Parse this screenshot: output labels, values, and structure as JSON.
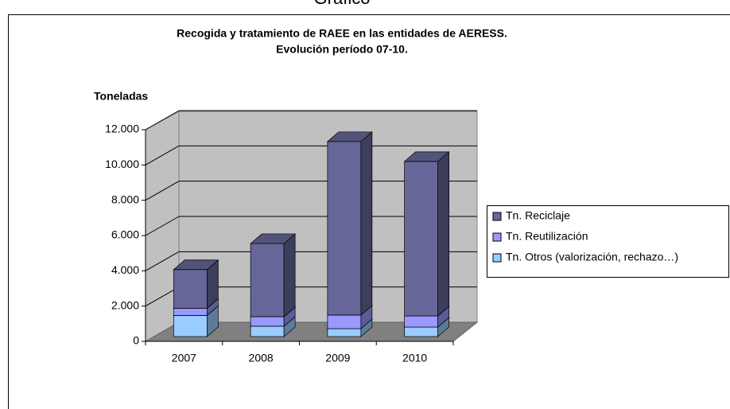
{
  "page_title": "Gráfico",
  "chart_data": {
    "type": "bar3d_stacked",
    "title": "Recogida y tratamiento de RAEE en las entidades de AERESS.",
    "subtitle": "Evolución período 07-10.",
    "y_label": "Toneladas",
    "categories": [
      "2007",
      "2008",
      "2009",
      "2010"
    ],
    "series": [
      {
        "name": "Tn. Otros (valorización, rechazo…)",
        "color": "#99ccff",
        "values": [
          1200,
          590,
          450,
          540
        ]
      },
      {
        "name": "Tn. Reutilización",
        "color": "#9999ff",
        "values": [
          400,
          540,
          770,
          630
        ]
      },
      {
        "name": "Tn. Reciclaje",
        "color": "#666699",
        "values": [
          2200,
          4150,
          9840,
          8760
        ]
      }
    ],
    "ylim": [
      0,
      12000
    ],
    "yticks": [
      0,
      {
        "value": 2000,
        "label": "2.000"
      },
      {
        "value": 4000,
        "label": "4.000"
      },
      {
        "value": 6000,
        "label": "6.000"
      },
      {
        "value": 8000,
        "label": "8.000"
      },
      {
        "value": 10000,
        "label": "10.000"
      },
      {
        "value": 12000,
        "label": "12.000"
      }
    ],
    "grid": true,
    "legend": "right"
  }
}
